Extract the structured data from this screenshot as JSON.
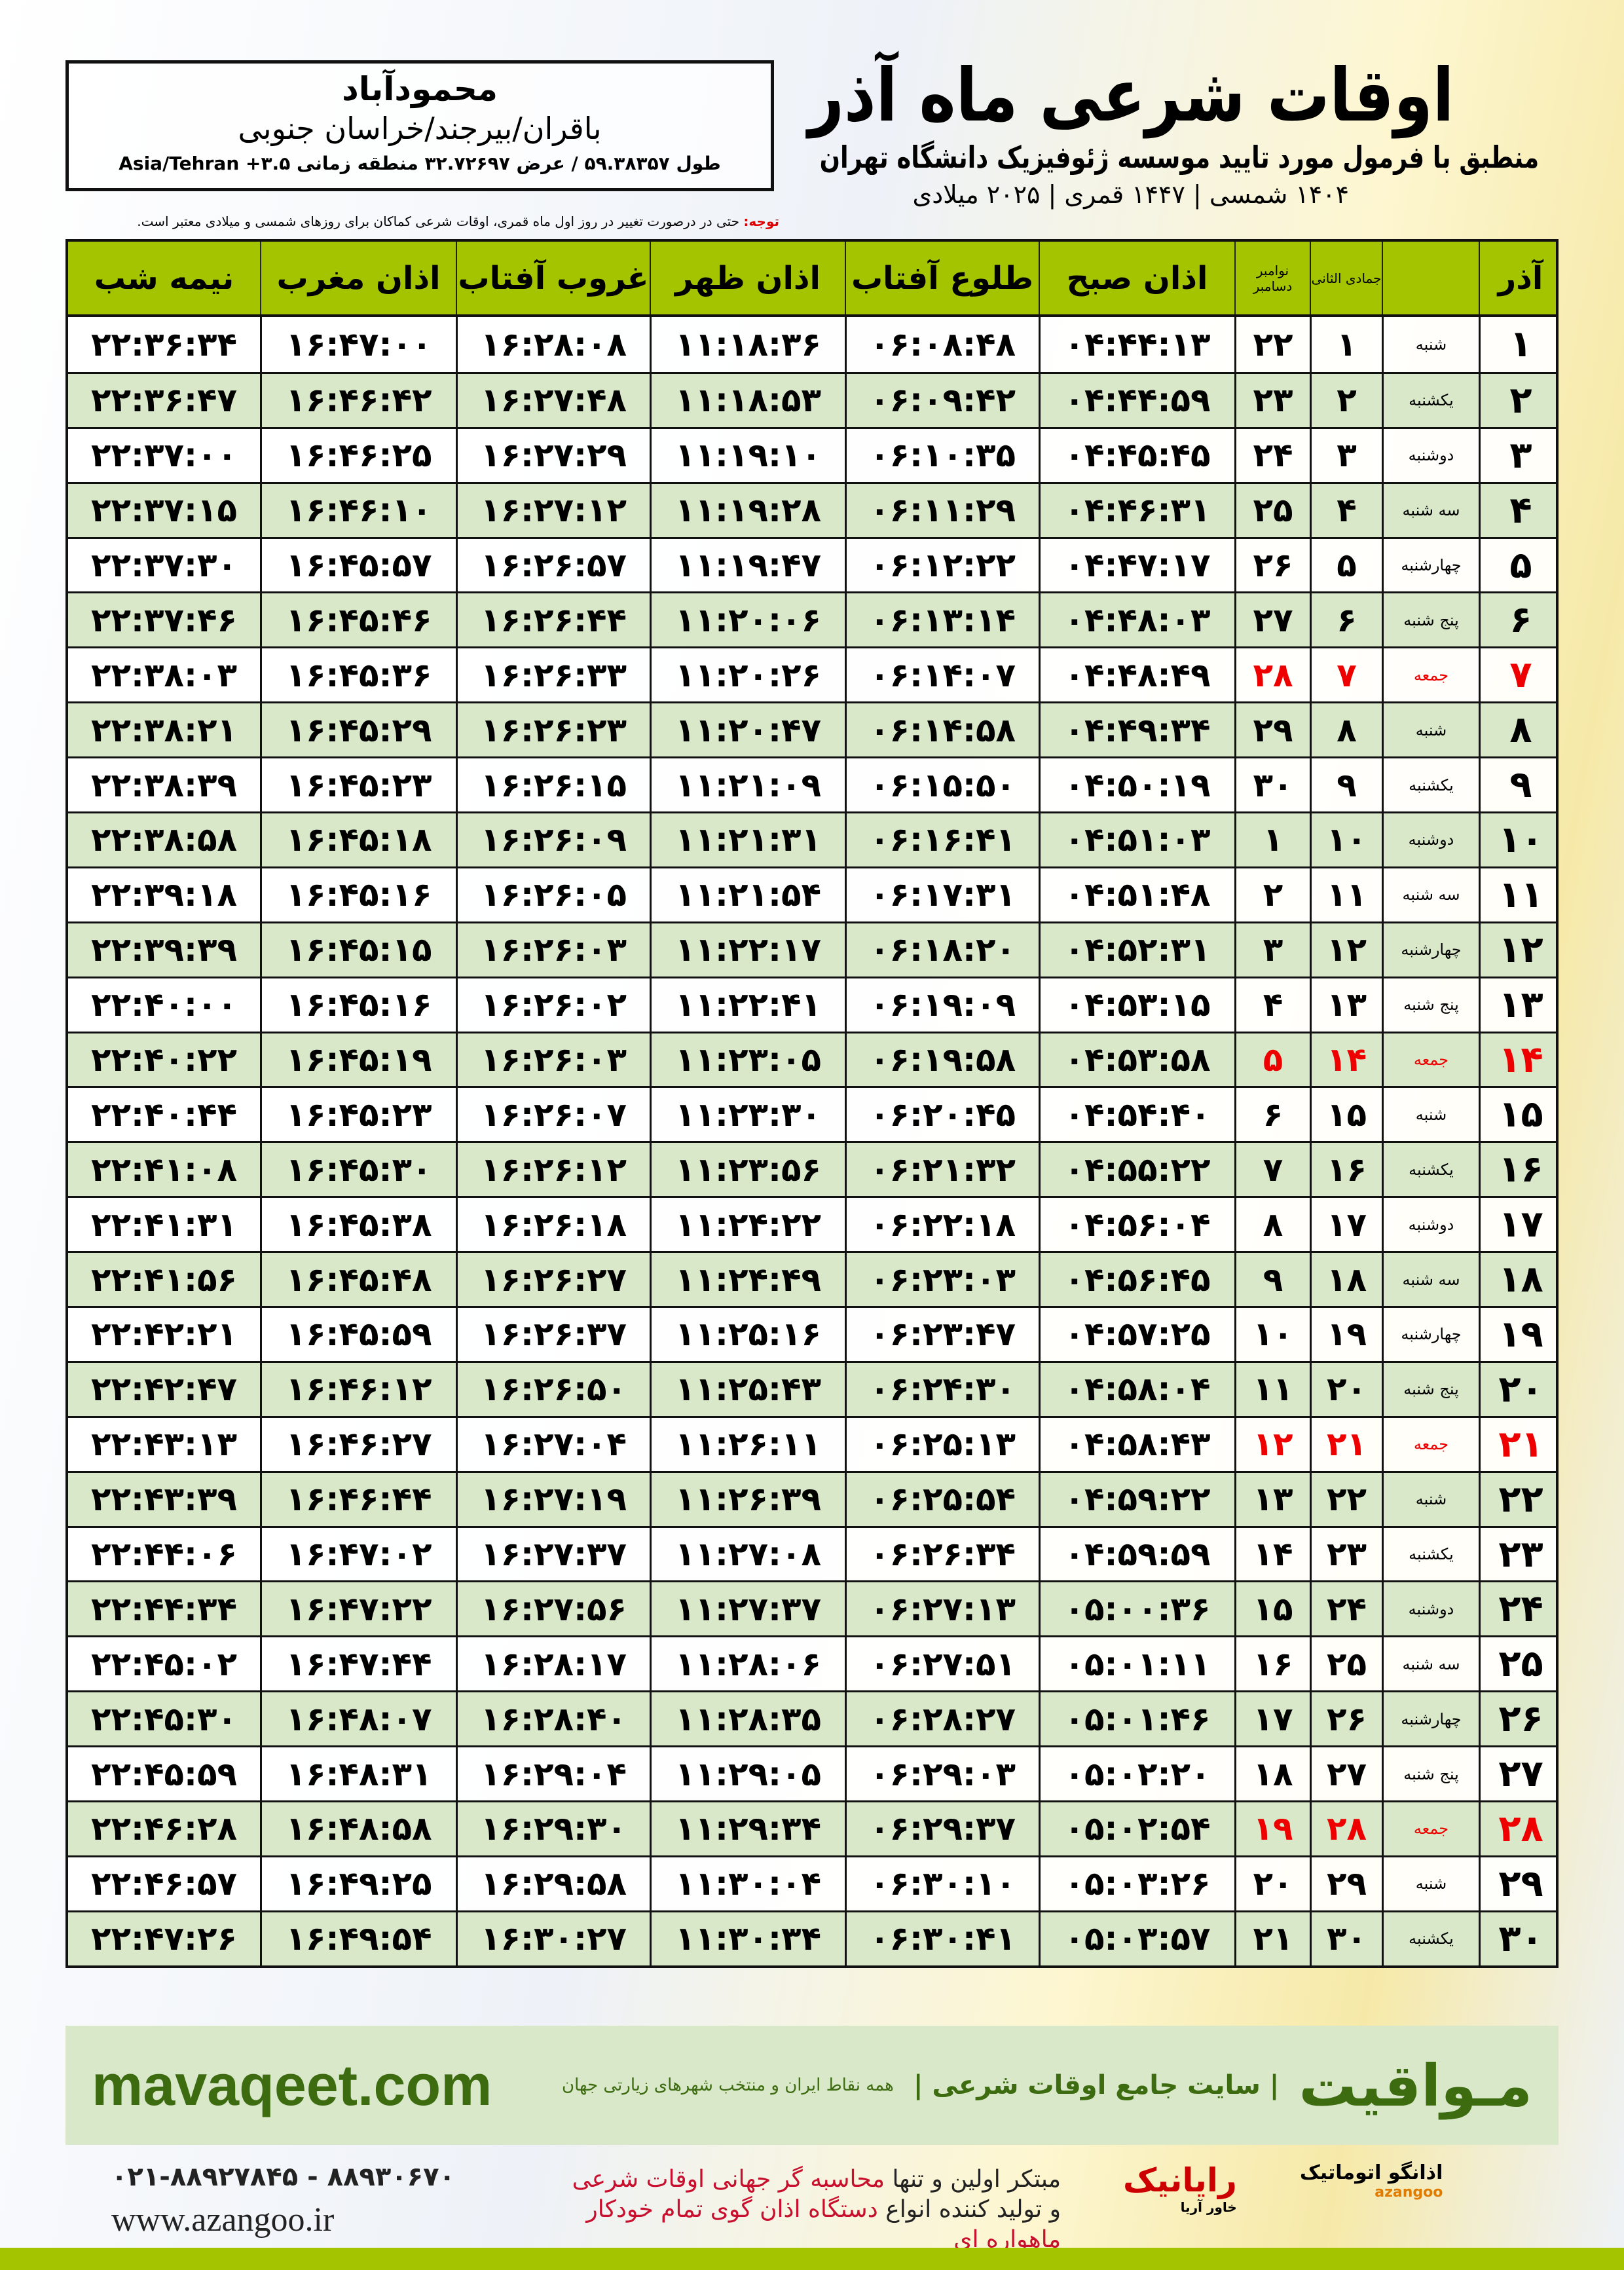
{
  "header": {
    "title": "اوقات شرعی ماه آذر",
    "subtitle": "منطبق با فرمول مورد تایید موسسه ژئوفیزیک دانشگاه تهران",
    "years": "۱۴۰۴ شمسی | ۱۴۴۷ قمری | ۲۰۲۵ میلادی"
  },
  "location": {
    "city": "محمودآباد",
    "region": "باقران/بیرجند/خراسان جنوبی",
    "coords": "طول ۵۹.۳۸۳۵۷ / عرض ۳۲.۷۲۶۹۷ منطقه زمانی ۳.۵+ Asia/Tehran"
  },
  "note": {
    "label": "توجه:",
    "text": " حتی در درصورت تغییر در روز اول ماه قمری، اوقات شرعی کماکان برای روزهای شمسی و میلادی معتبر است."
  },
  "columns": {
    "midnight": "نیمه شب",
    "maghrib": "اذان مغرب",
    "sunset": "غروب آفتاب",
    "dhuhr": "اذان ظهر",
    "sunrise": "طلوع آفتاب",
    "fajr": "اذان صبح",
    "nov": "نوامبر",
    "dec": "دسامبر",
    "jumada": "جمادی الثانی",
    "azar": "آذر"
  },
  "colors": {
    "header_bg": "#a5c400",
    "even_row": "#d8e8c8",
    "friday": "#e00000",
    "brand": "#3d6b10"
  },
  "rows": [
    [
      "۱",
      "شنبه",
      "۱",
      "۲۲",
      "۰۴:۴۴:۱۳",
      "۰۶:۰۸:۴۸",
      "۱۱:۱۸:۳۶",
      "۱۶:۲۸:۰۸",
      "۱۶:۴۷:۰۰",
      "۲۲:۳۶:۳۴"
    ],
    [
      "۲",
      "یکشنبه",
      "۲",
      "۲۳",
      "۰۴:۴۴:۵۹",
      "۰۶:۰۹:۴۲",
      "۱۱:۱۸:۵۳",
      "۱۶:۲۷:۴۸",
      "۱۶:۴۶:۴۲",
      "۲۲:۳۶:۴۷"
    ],
    [
      "۳",
      "دوشنبه",
      "۳",
      "۲۴",
      "۰۴:۴۵:۴۵",
      "۰۶:۱۰:۳۵",
      "۱۱:۱۹:۱۰",
      "۱۶:۲۷:۲۹",
      "۱۶:۴۶:۲۵",
      "۲۲:۳۷:۰۰"
    ],
    [
      "۴",
      "سه شنبه",
      "۴",
      "۲۵",
      "۰۴:۴۶:۳۱",
      "۰۶:۱۱:۲۹",
      "۱۱:۱۹:۲۸",
      "۱۶:۲۷:۱۲",
      "۱۶:۴۶:۱۰",
      "۲۲:۳۷:۱۵"
    ],
    [
      "۵",
      "چهارشنبه",
      "۵",
      "۲۶",
      "۰۴:۴۷:۱۷",
      "۰۶:۱۲:۲۲",
      "۱۱:۱۹:۴۷",
      "۱۶:۲۶:۵۷",
      "۱۶:۴۵:۵۷",
      "۲۲:۳۷:۳۰"
    ],
    [
      "۶",
      "پنج شنبه",
      "۶",
      "۲۷",
      "۰۴:۴۸:۰۳",
      "۰۶:۱۳:۱۴",
      "۱۱:۲۰:۰۶",
      "۱۶:۲۶:۴۴",
      "۱۶:۴۵:۴۶",
      "۲۲:۳۷:۴۶"
    ],
    [
      "۷",
      "جمعه",
      "۷",
      "۲۸",
      "۰۴:۴۸:۴۹",
      "۰۶:۱۴:۰۷",
      "۱۱:۲۰:۲۶",
      "۱۶:۲۶:۳۳",
      "۱۶:۴۵:۳۶",
      "۲۲:۳۸:۰۳"
    ],
    [
      "۸",
      "شنبه",
      "۸",
      "۲۹",
      "۰۴:۴۹:۳۴",
      "۰۶:۱۴:۵۸",
      "۱۱:۲۰:۴۷",
      "۱۶:۲۶:۲۳",
      "۱۶:۴۵:۲۹",
      "۲۲:۳۸:۲۱"
    ],
    [
      "۹",
      "یکشنبه",
      "۹",
      "۳۰",
      "۰۴:۵۰:۱۹",
      "۰۶:۱۵:۵۰",
      "۱۱:۲۱:۰۹",
      "۱۶:۲۶:۱۵",
      "۱۶:۴۵:۲۳",
      "۲۲:۳۸:۳۹"
    ],
    [
      "۱۰",
      "دوشنبه",
      "۱۰",
      "۱",
      "۰۴:۵۱:۰۳",
      "۰۶:۱۶:۴۱",
      "۱۱:۲۱:۳۱",
      "۱۶:۲۶:۰۹",
      "۱۶:۴۵:۱۸",
      "۲۲:۳۸:۵۸"
    ],
    [
      "۱۱",
      "سه شنبه",
      "۱۱",
      "۲",
      "۰۴:۵۱:۴۸",
      "۰۶:۱۷:۳۱",
      "۱۱:۲۱:۵۴",
      "۱۶:۲۶:۰۵",
      "۱۶:۴۵:۱۶",
      "۲۲:۳۹:۱۸"
    ],
    [
      "۱۲",
      "چهارشنبه",
      "۱۲",
      "۳",
      "۰۴:۵۲:۳۱",
      "۰۶:۱۸:۲۰",
      "۱۱:۲۲:۱۷",
      "۱۶:۲۶:۰۳",
      "۱۶:۴۵:۱۵",
      "۲۲:۳۹:۳۹"
    ],
    [
      "۱۳",
      "پنج شنبه",
      "۱۳",
      "۴",
      "۰۴:۵۳:۱۵",
      "۰۶:۱۹:۰۹",
      "۱۱:۲۲:۴۱",
      "۱۶:۲۶:۰۲",
      "۱۶:۴۵:۱۶",
      "۲۲:۴۰:۰۰"
    ],
    [
      "۱۴",
      "جمعه",
      "۱۴",
      "۵",
      "۰۴:۵۳:۵۸",
      "۰۶:۱۹:۵۸",
      "۱۱:۲۳:۰۵",
      "۱۶:۲۶:۰۳",
      "۱۶:۴۵:۱۹",
      "۲۲:۴۰:۲۲"
    ],
    [
      "۱۵",
      "شنبه",
      "۱۵",
      "۶",
      "۰۴:۵۴:۴۰",
      "۰۶:۲۰:۴۵",
      "۱۱:۲۳:۳۰",
      "۱۶:۲۶:۰۷",
      "۱۶:۴۵:۲۳",
      "۲۲:۴۰:۴۴"
    ],
    [
      "۱۶",
      "یکشنبه",
      "۱۶",
      "۷",
      "۰۴:۵۵:۲۲",
      "۰۶:۲۱:۳۲",
      "۱۱:۲۳:۵۶",
      "۱۶:۲۶:۱۲",
      "۱۶:۴۵:۳۰",
      "۲۲:۴۱:۰۸"
    ],
    [
      "۱۷",
      "دوشنبه",
      "۱۷",
      "۸",
      "۰۴:۵۶:۰۴",
      "۰۶:۲۲:۱۸",
      "۱۱:۲۴:۲۲",
      "۱۶:۲۶:۱۸",
      "۱۶:۴۵:۳۸",
      "۲۲:۴۱:۳۱"
    ],
    [
      "۱۸",
      "سه شنبه",
      "۱۸",
      "۹",
      "۰۴:۵۶:۴۵",
      "۰۶:۲۳:۰۳",
      "۱۱:۲۴:۴۹",
      "۱۶:۲۶:۲۷",
      "۱۶:۴۵:۴۸",
      "۲۲:۴۱:۵۶"
    ],
    [
      "۱۹",
      "چهارشنبه",
      "۱۹",
      "۱۰",
      "۰۴:۵۷:۲۵",
      "۰۶:۲۳:۴۷",
      "۱۱:۲۵:۱۶",
      "۱۶:۲۶:۳۷",
      "۱۶:۴۵:۵۹",
      "۲۲:۴۲:۲۱"
    ],
    [
      "۲۰",
      "پنج شنبه",
      "۲۰",
      "۱۱",
      "۰۴:۵۸:۰۴",
      "۰۶:۲۴:۳۰",
      "۱۱:۲۵:۴۳",
      "۱۶:۲۶:۵۰",
      "۱۶:۴۶:۱۲",
      "۲۲:۴۲:۴۷"
    ],
    [
      "۲۱",
      "جمعه",
      "۲۱",
      "۱۲",
      "۰۴:۵۸:۴۳",
      "۰۶:۲۵:۱۳",
      "۱۱:۲۶:۱۱",
      "۱۶:۲۷:۰۴",
      "۱۶:۴۶:۲۷",
      "۲۲:۴۳:۱۳"
    ],
    [
      "۲۲",
      "شنبه",
      "۲۲",
      "۱۳",
      "۰۴:۵۹:۲۲",
      "۰۶:۲۵:۵۴",
      "۱۱:۲۶:۳۹",
      "۱۶:۲۷:۱۹",
      "۱۶:۴۶:۴۴",
      "۲۲:۴۳:۳۹"
    ],
    [
      "۲۳",
      "یکشنبه",
      "۲۳",
      "۱۴",
      "۰۴:۵۹:۵۹",
      "۰۶:۲۶:۳۴",
      "۱۱:۲۷:۰۸",
      "۱۶:۲۷:۳۷",
      "۱۶:۴۷:۰۲",
      "۲۲:۴۴:۰۶"
    ],
    [
      "۲۴",
      "دوشنبه",
      "۲۴",
      "۱۵",
      "۰۵:۰۰:۳۶",
      "۰۶:۲۷:۱۳",
      "۱۱:۲۷:۳۷",
      "۱۶:۲۷:۵۶",
      "۱۶:۴۷:۲۲",
      "۲۲:۴۴:۳۴"
    ],
    [
      "۲۵",
      "سه شنبه",
      "۲۵",
      "۱۶",
      "۰۵:۰۱:۱۱",
      "۰۶:۲۷:۵۱",
      "۱۱:۲۸:۰۶",
      "۱۶:۲۸:۱۷",
      "۱۶:۴۷:۴۴",
      "۲۲:۴۵:۰۲"
    ],
    [
      "۲۶",
      "چهارشنبه",
      "۲۶",
      "۱۷",
      "۰۵:۰۱:۴۶",
      "۰۶:۲۸:۲۷",
      "۱۱:۲۸:۳۵",
      "۱۶:۲۸:۴۰",
      "۱۶:۴۸:۰۷",
      "۲۲:۴۵:۳۰"
    ],
    [
      "۲۷",
      "پنج شنبه",
      "۲۷",
      "۱۸",
      "۰۵:۰۲:۲۰",
      "۰۶:۲۹:۰۳",
      "۱۱:۲۹:۰۵",
      "۱۶:۲۹:۰۴",
      "۱۶:۴۸:۳۱",
      "۲۲:۴۵:۵۹"
    ],
    [
      "۲۸",
      "جمعه",
      "۲۸",
      "۱۹",
      "۰۵:۰۲:۵۴",
      "۰۶:۲۹:۳۷",
      "۱۱:۲۹:۳۴",
      "۱۶:۲۹:۳۰",
      "۱۶:۴۸:۵۸",
      "۲۲:۴۶:۲۸"
    ],
    [
      "۲۹",
      "شنبه",
      "۲۹",
      "۲۰",
      "۰۵:۰۳:۲۶",
      "۰۶:۳۰:۱۰",
      "۱۱:۳۰:۰۴",
      "۱۶:۲۹:۵۸",
      "۱۶:۴۹:۲۵",
      "۲۲:۴۶:۵۷"
    ],
    [
      "۳۰",
      "یکشنبه",
      "۳۰",
      "۲۱",
      "۰۵:۰۳:۵۷",
      "۰۶:۳۰:۴۱",
      "۱۱:۳۰:۳۴",
      "۱۶:۳۰:۲۷",
      "۱۶:۴۹:۵۴",
      "۲۲:۴۷:۲۶"
    ]
  ],
  "footer": {
    "site": "mavaqeet.com",
    "brand": "مـواقیت",
    "brand_sub": "| سایت جامع اوقات شرعی |",
    "brand_sub2": "همه نقاط ایران و منتخب شهرهای زیارتی جهان",
    "phone": "۰۲۱-۸۸۹۲۷۸۴۵ - ۸۸۹۳۰۶۷۰",
    "web": "www.azangoo.ir",
    "slogan1a": "مبتکر اولین و تنها ",
    "slogan1b": "محاسبه گر جهانی اوقات شرعی",
    "slogan2a": "و تولید کننده انواع ",
    "slogan2b": "دستگاه اذان گوی تمام خودکار ماهواره ای",
    "logo_rayanik": "رایانیک",
    "logo_rayanik_sub": "خاور آریا",
    "logo_azangoo": "اذانگو اتوماتیک",
    "logo_azangoo_sub": "azangoo"
  }
}
